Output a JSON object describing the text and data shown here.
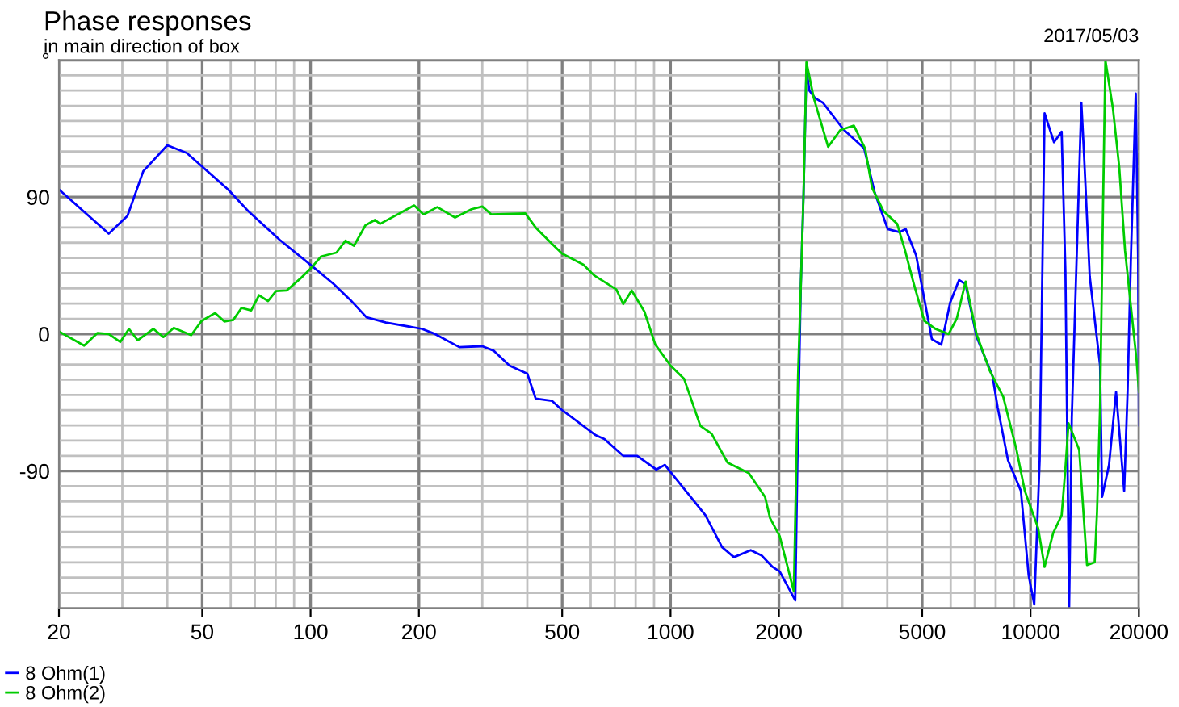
{
  "chart_data": {
    "type": "line",
    "title": "Phase responses",
    "subtitle": "in main direction of box",
    "annotations": [
      "2017/05/03"
    ],
    "log": "x",
    "grid": true,
    "legend": "bottom left",
    "marker": "none",
    "line_style": "solid",
    "xlim": [
      20,
      20000
    ],
    "ylim": [
      -180,
      180
    ],
    "xticks": [
      20,
      {
        "value": 30,
        "label": null
      },
      {
        "value": 40,
        "label": null
      },
      50,
      {
        "value": 60,
        "label": null
      },
      {
        "value": 70,
        "label": null
      },
      {
        "value": 80,
        "label": null
      },
      {
        "value": 90,
        "label": null
      },
      100,
      200,
      {
        "value": 300,
        "label": null
      },
      {
        "value": 400,
        "label": null
      },
      500,
      {
        "value": 600,
        "label": null
      },
      {
        "value": 700,
        "label": null
      },
      {
        "value": 800,
        "label": null
      },
      {
        "value": 900,
        "label": null
      },
      1000,
      2000,
      {
        "value": 3000,
        "label": null
      },
      {
        "value": 4000,
        "label": null
      },
      5000,
      {
        "value": 6000,
        "label": null
      },
      {
        "value": 7000,
        "label": null
      },
      {
        "value": 8000,
        "label": null
      },
      {
        "value": 9000,
        "label": null
      },
      10000,
      20000
    ],
    "yticks": [
      {
        "value": -170,
        "label": null
      },
      {
        "value": -160,
        "label": null
      },
      {
        "value": -150,
        "label": null
      },
      {
        "value": -140,
        "label": null
      },
      {
        "value": -130,
        "label": null
      },
      {
        "value": -120,
        "label": null
      },
      {
        "value": -110,
        "label": null
      },
      {
        "value": -100,
        "label": null
      },
      -90,
      {
        "value": -80,
        "label": null
      },
      {
        "value": -70,
        "label": null
      },
      {
        "value": -60,
        "label": null
      },
      {
        "value": -50,
        "label": null
      },
      {
        "value": -40,
        "label": null
      },
      {
        "value": -30,
        "label": null
      },
      {
        "value": -20,
        "label": null
      },
      {
        "value": -10,
        "label": null
      },
      0,
      {
        "value": 10,
        "label": null
      },
      {
        "value": 20,
        "label": null
      },
      {
        "value": 30,
        "label": null
      },
      {
        "value": 40,
        "label": null
      },
      {
        "value": 50,
        "label": null
      },
      {
        "value": 60,
        "label": null
      },
      {
        "value": 70,
        "label": null
      },
      {
        "value": 80,
        "label": null
      },
      90,
      {
        "value": 100,
        "label": null
      },
      {
        "value": 110,
        "label": null
      },
      {
        "value": 120,
        "label": null
      },
      {
        "value": 130,
        "label": null
      },
      {
        "value": 140,
        "label": null
      },
      {
        "value": 150,
        "label": null
      },
      {
        "value": 160,
        "label": null
      },
      {
        "value": 170,
        "label": null
      },
      {
        "value": 180,
        "label": "°"
      }
    ],
    "series": [
      {
        "name": "8 Ohm(1)",
        "color": "#0000ff",
        "x": [
          20,
          27.5,
          31,
          34.3,
          40,
          45.3,
          50,
          59,
          67,
          82,
          100,
          116,
          129,
          143,
          162,
          204,
          222,
          259,
          300,
          323,
          357,
          400,
          422,
          468,
          500,
          620,
          655,
          739,
          808,
          913,
          965,
          1000,
          1250,
          1390,
          1500,
          1670,
          1790,
          1920,
          2010,
          2220,
          2250,
          2300,
          2340,
          2385,
          2430,
          2520,
          2650,
          3020,
          3450,
          3690,
          4010,
          4330,
          4500,
          4810,
          5060,
          5320,
          5650,
          5980,
          6330,
          6600,
          7080,
          7840,
          8100,
          8660,
          9400,
          9880,
          10240,
          10600,
          10940,
          11620,
          12200,
          12500,
          12800,
          13020,
          13840,
          14060,
          14600,
          15600,
          15800,
          16520,
          17280,
          18200,
          18600,
          19000,
          19600,
          19900,
          20000
        ],
        "values": [
          95,
          66,
          77.6,
          107,
          124,
          119,
          110,
          95,
          81,
          62,
          45.5,
          32.8,
          22.4,
          11,
          7.6,
          3.4,
          0,
          -8.6,
          -8,
          -11,
          -20.7,
          -26,
          -42.4,
          -43.8,
          -50,
          -66.5,
          -69,
          -80,
          -80,
          -89,
          -86,
          -90.7,
          -119,
          -140,
          -146.6,
          -142,
          -145.5,
          -153,
          -156,
          -175,
          -86,
          31,
          90,
          174,
          160,
          155,
          152,
          134.5,
          122,
          93,
          69,
          67,
          69,
          51.7,
          24,
          -3.4,
          -6.9,
          20.7,
          35.5,
          32.8,
          -1.7,
          -27.6,
          -48,
          -83,
          -103,
          -158.6,
          -177.6,
          -83,
          145,
          126,
          133,
          41,
          -180,
          -55,
          152,
          120.7,
          38,
          -20.7,
          -107,
          -86,
          -38,
          -103,
          -38,
          50,
          158,
          48.6,
          -60
        ]
      },
      {
        "name": "8 Ohm(2)",
        "color": "#00cc00",
        "x": [
          20,
          23.5,
          25.6,
          27.5,
          29.6,
          31.3,
          33.1,
          36.6,
          39,
          41.7,
          46.6,
          49.8,
          54.3,
          57.6,
          61,
          64.3,
          68.4,
          71.9,
          76.2,
          80.2,
          85.8,
          93.4,
          100,
          107,
          118,
          125,
          132,
          142,
          151,
          156,
          194,
          206,
          225,
          252,
          280,
          300,
          318,
          395,
          422,
          468,
          500,
          573,
          613,
          707,
          739,
          780,
          846,
          907,
          1000,
          1090,
          1210,
          1300,
          1440,
          1650,
          1830,
          1890,
          2010,
          2200,
          2260,
          2300,
          2340,
          2370,
          2385,
          2500,
          2740,
          2960,
          3230,
          3470,
          3630,
          3900,
          4260,
          4480,
          4720,
          5070,
          5440,
          5920,
          6240,
          6600,
          7080,
          7700,
          8400,
          9140,
          9640,
          10500,
          10940,
          11550,
          12200,
          12500,
          12750,
          13650,
          14350,
          15070,
          15300,
          15600,
          15900,
          16140,
          16940,
          17630,
          18300,
          18950,
          19700,
          20000
        ],
        "values": [
          1.7,
          -7.6,
          0.7,
          0,
          -5.2,
          3.4,
          -4.1,
          3.4,
          -2,
          4.1,
          -0.7,
          8.6,
          13.8,
          8.3,
          9.3,
          17.2,
          15.5,
          25.5,
          21.7,
          28.3,
          28.6,
          36.2,
          43,
          51,
          53.5,
          61.3,
          58,
          71.4,
          75,
          72.4,
          84.5,
          78.6,
          83.4,
          76.6,
          82,
          83.8,
          78.6,
          79.3,
          70,
          59.3,
          52.8,
          45.5,
          38.6,
          29.3,
          19.7,
          28.6,
          14.8,
          -6.9,
          -20.7,
          -29.3,
          -60.3,
          -65.5,
          -84.5,
          -91.4,
          -107,
          -121,
          -132.8,
          -169,
          -27.6,
          31,
          90,
          148,
          178.6,
          155,
          123,
          134,
          137,
          122,
          96,
          81,
          72.4,
          55,
          34.5,
          8.6,
          3.4,
          0,
          10.3,
          34.5,
          0,
          -24,
          -41.4,
          -76,
          -103,
          -127.6,
          -153,
          -131,
          -119,
          -88,
          -58.6,
          -76,
          -151.8,
          -150,
          -117,
          -48,
          84.5,
          180,
          148,
          110,
          55,
          20.7,
          -17,
          -38
        ]
      }
    ]
  }
}
